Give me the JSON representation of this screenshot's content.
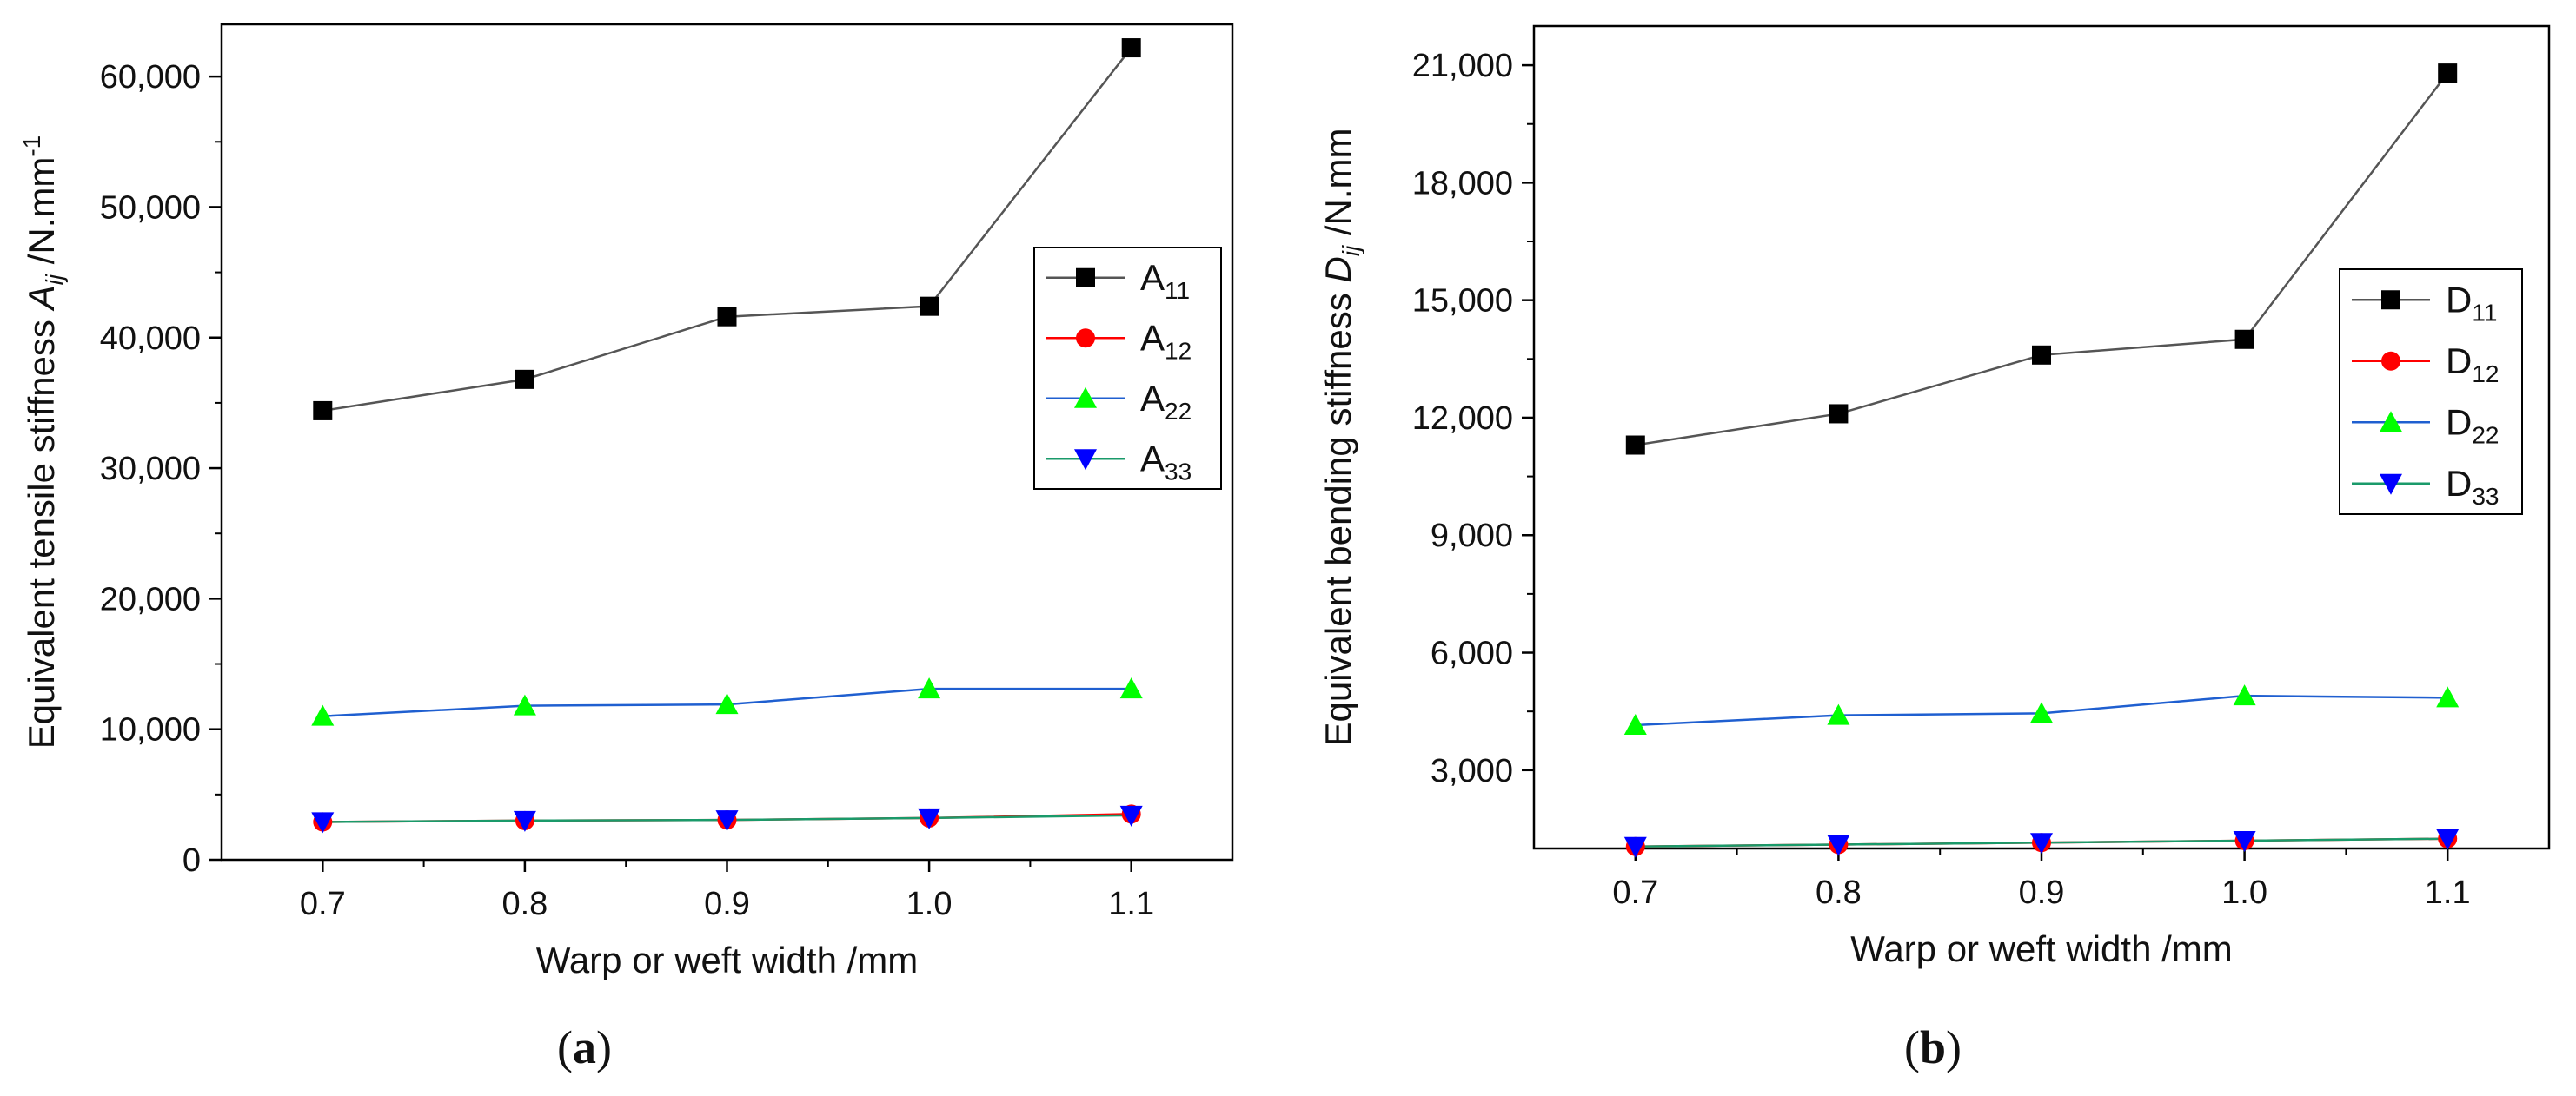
{
  "chart_data": [
    {
      "type": "line",
      "panel_label": "a",
      "title": "",
      "xlabel": "Warp or weft width /mm",
      "ylabel_prefix": "Equivalent tensile stiffness ",
      "ylabel_symbol": "A",
      "ylabel_sub": "ij",
      "ylabel_unit": " /N.mm",
      "ylabel_sup": "-1",
      "x": [
        0.7,
        0.8,
        0.9,
        1.0,
        1.1
      ],
      "x_ticks": [
        "0.7",
        "0.8",
        "0.9",
        "1.0",
        "1.1"
      ],
      "xlim": [
        0.65,
        1.15
      ],
      "ylim": [
        0,
        64000
      ],
      "y_ticks": [
        0,
        10000,
        20000,
        30000,
        40000,
        50000,
        60000
      ],
      "y_tick_labels": [
        "0",
        "10,000",
        "20,000",
        "30,000",
        "40,000",
        "50,000",
        "60,000"
      ],
      "legend_position": "right",
      "series": [
        {
          "name": "A",
          "sub": "11",
          "color": "#000000",
          "line_color": "#555555",
          "marker": "square",
          "values": [
            34400,
            36800,
            41600,
            42400,
            62200
          ]
        },
        {
          "name": "A",
          "sub": "12",
          "color": "#ff0000",
          "line_color": "#ff0000",
          "marker": "circle",
          "values": [
            2900,
            3000,
            3050,
            3200,
            3500
          ]
        },
        {
          "name": "A",
          "sub": "22",
          "color": "#00ff00",
          "line_color": "#1f5fd0",
          "marker": "triangle-up",
          "values": [
            11000,
            11800,
            11900,
            13100,
            13100
          ]
        },
        {
          "name": "A",
          "sub": "33",
          "color": "#0000ff",
          "line_color": "#1a9a6a",
          "marker": "triangle-down",
          "values": [
            2900,
            3000,
            3050,
            3200,
            3400
          ]
        }
      ]
    },
    {
      "type": "line",
      "panel_label": "b",
      "title": "",
      "xlabel": "Warp or weft width /mm",
      "ylabel_prefix": "Equivalent bending stiffness ",
      "ylabel_symbol": "D",
      "ylabel_sub": "ij",
      "ylabel_unit": " /N.mm",
      "ylabel_sup": "",
      "x": [
        0.7,
        0.8,
        0.9,
        1.0,
        1.1
      ],
      "x_ticks": [
        "0.7",
        "0.8",
        "0.9",
        "1.0",
        "1.1"
      ],
      "xlim": [
        0.65,
        1.15
      ],
      "ylim": [
        1000,
        22000
      ],
      "y_ticks": [
        3000,
        6000,
        9000,
        12000,
        15000,
        18000,
        21000
      ],
      "y_tick_labels": [
        "3,000",
        "6,000",
        "9,000",
        "12,000",
        "15,000",
        "18,000",
        "21,000"
      ],
      "legend_position": "right",
      "series": [
        {
          "name": "D",
          "sub": "11",
          "color": "#000000",
          "line_color": "#555555",
          "marker": "square",
          "values": [
            11300,
            12100,
            13600,
            14000,
            20800
          ]
        },
        {
          "name": "D",
          "sub": "12",
          "color": "#ff0000",
          "line_color": "#ff0000",
          "marker": "circle",
          "values": [
            1050,
            1100,
            1150,
            1200,
            1250
          ]
        },
        {
          "name": "D",
          "sub": "22",
          "color": "#00ff00",
          "line_color": "#1f5fd0",
          "marker": "triangle-up",
          "values": [
            4150,
            4400,
            4450,
            4900,
            4850
          ]
        },
        {
          "name": "D",
          "sub": "33",
          "color": "#0000ff",
          "line_color": "#1a9a6a",
          "marker": "triangle-down",
          "values": [
            1050,
            1100,
            1150,
            1200,
            1250
          ]
        }
      ]
    }
  ],
  "captions": {
    "a": {
      "open": "(",
      "letter": "a",
      "close": ")"
    },
    "b": {
      "open": "(",
      "letter": "b",
      "close": ")"
    }
  }
}
